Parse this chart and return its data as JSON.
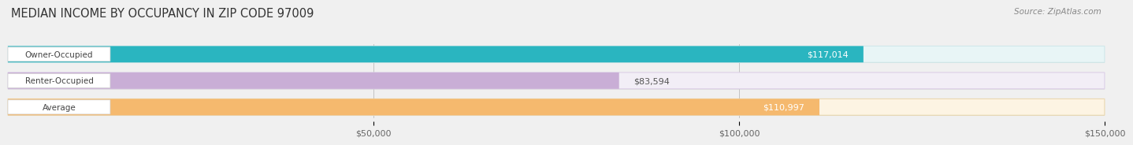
{
  "title": "MEDIAN INCOME BY OCCUPANCY IN ZIP CODE 97009",
  "source": "Source: ZipAtlas.com",
  "categories": [
    "Owner-Occupied",
    "Renter-Occupied",
    "Average"
  ],
  "values": [
    117014,
    83594,
    110997
  ],
  "labels": [
    "$117,014",
    "$83,594",
    "$110,997"
  ],
  "label_inside": [
    true,
    false,
    true
  ],
  "bar_colors": [
    "#2ab5c0",
    "#c9aed6",
    "#f5b96e"
  ],
  "bar_bg_colors": [
    "#e8f5f6",
    "#f2eef6",
    "#fdf4e3"
  ],
  "bar_bg_border": [
    "#d0e8ea",
    "#ddd0e8",
    "#ead8b0"
  ],
  "xlim": [
    0,
    150000
  ],
  "xticks": [
    50000,
    100000,
    150000
  ],
  "xticklabels": [
    "$50,000",
    "$100,000",
    "$150,000"
  ],
  "title_fontsize": 10.5,
  "source_fontsize": 7.5,
  "label_fontsize": 8,
  "category_fontsize": 7.5,
  "tick_fontsize": 8
}
